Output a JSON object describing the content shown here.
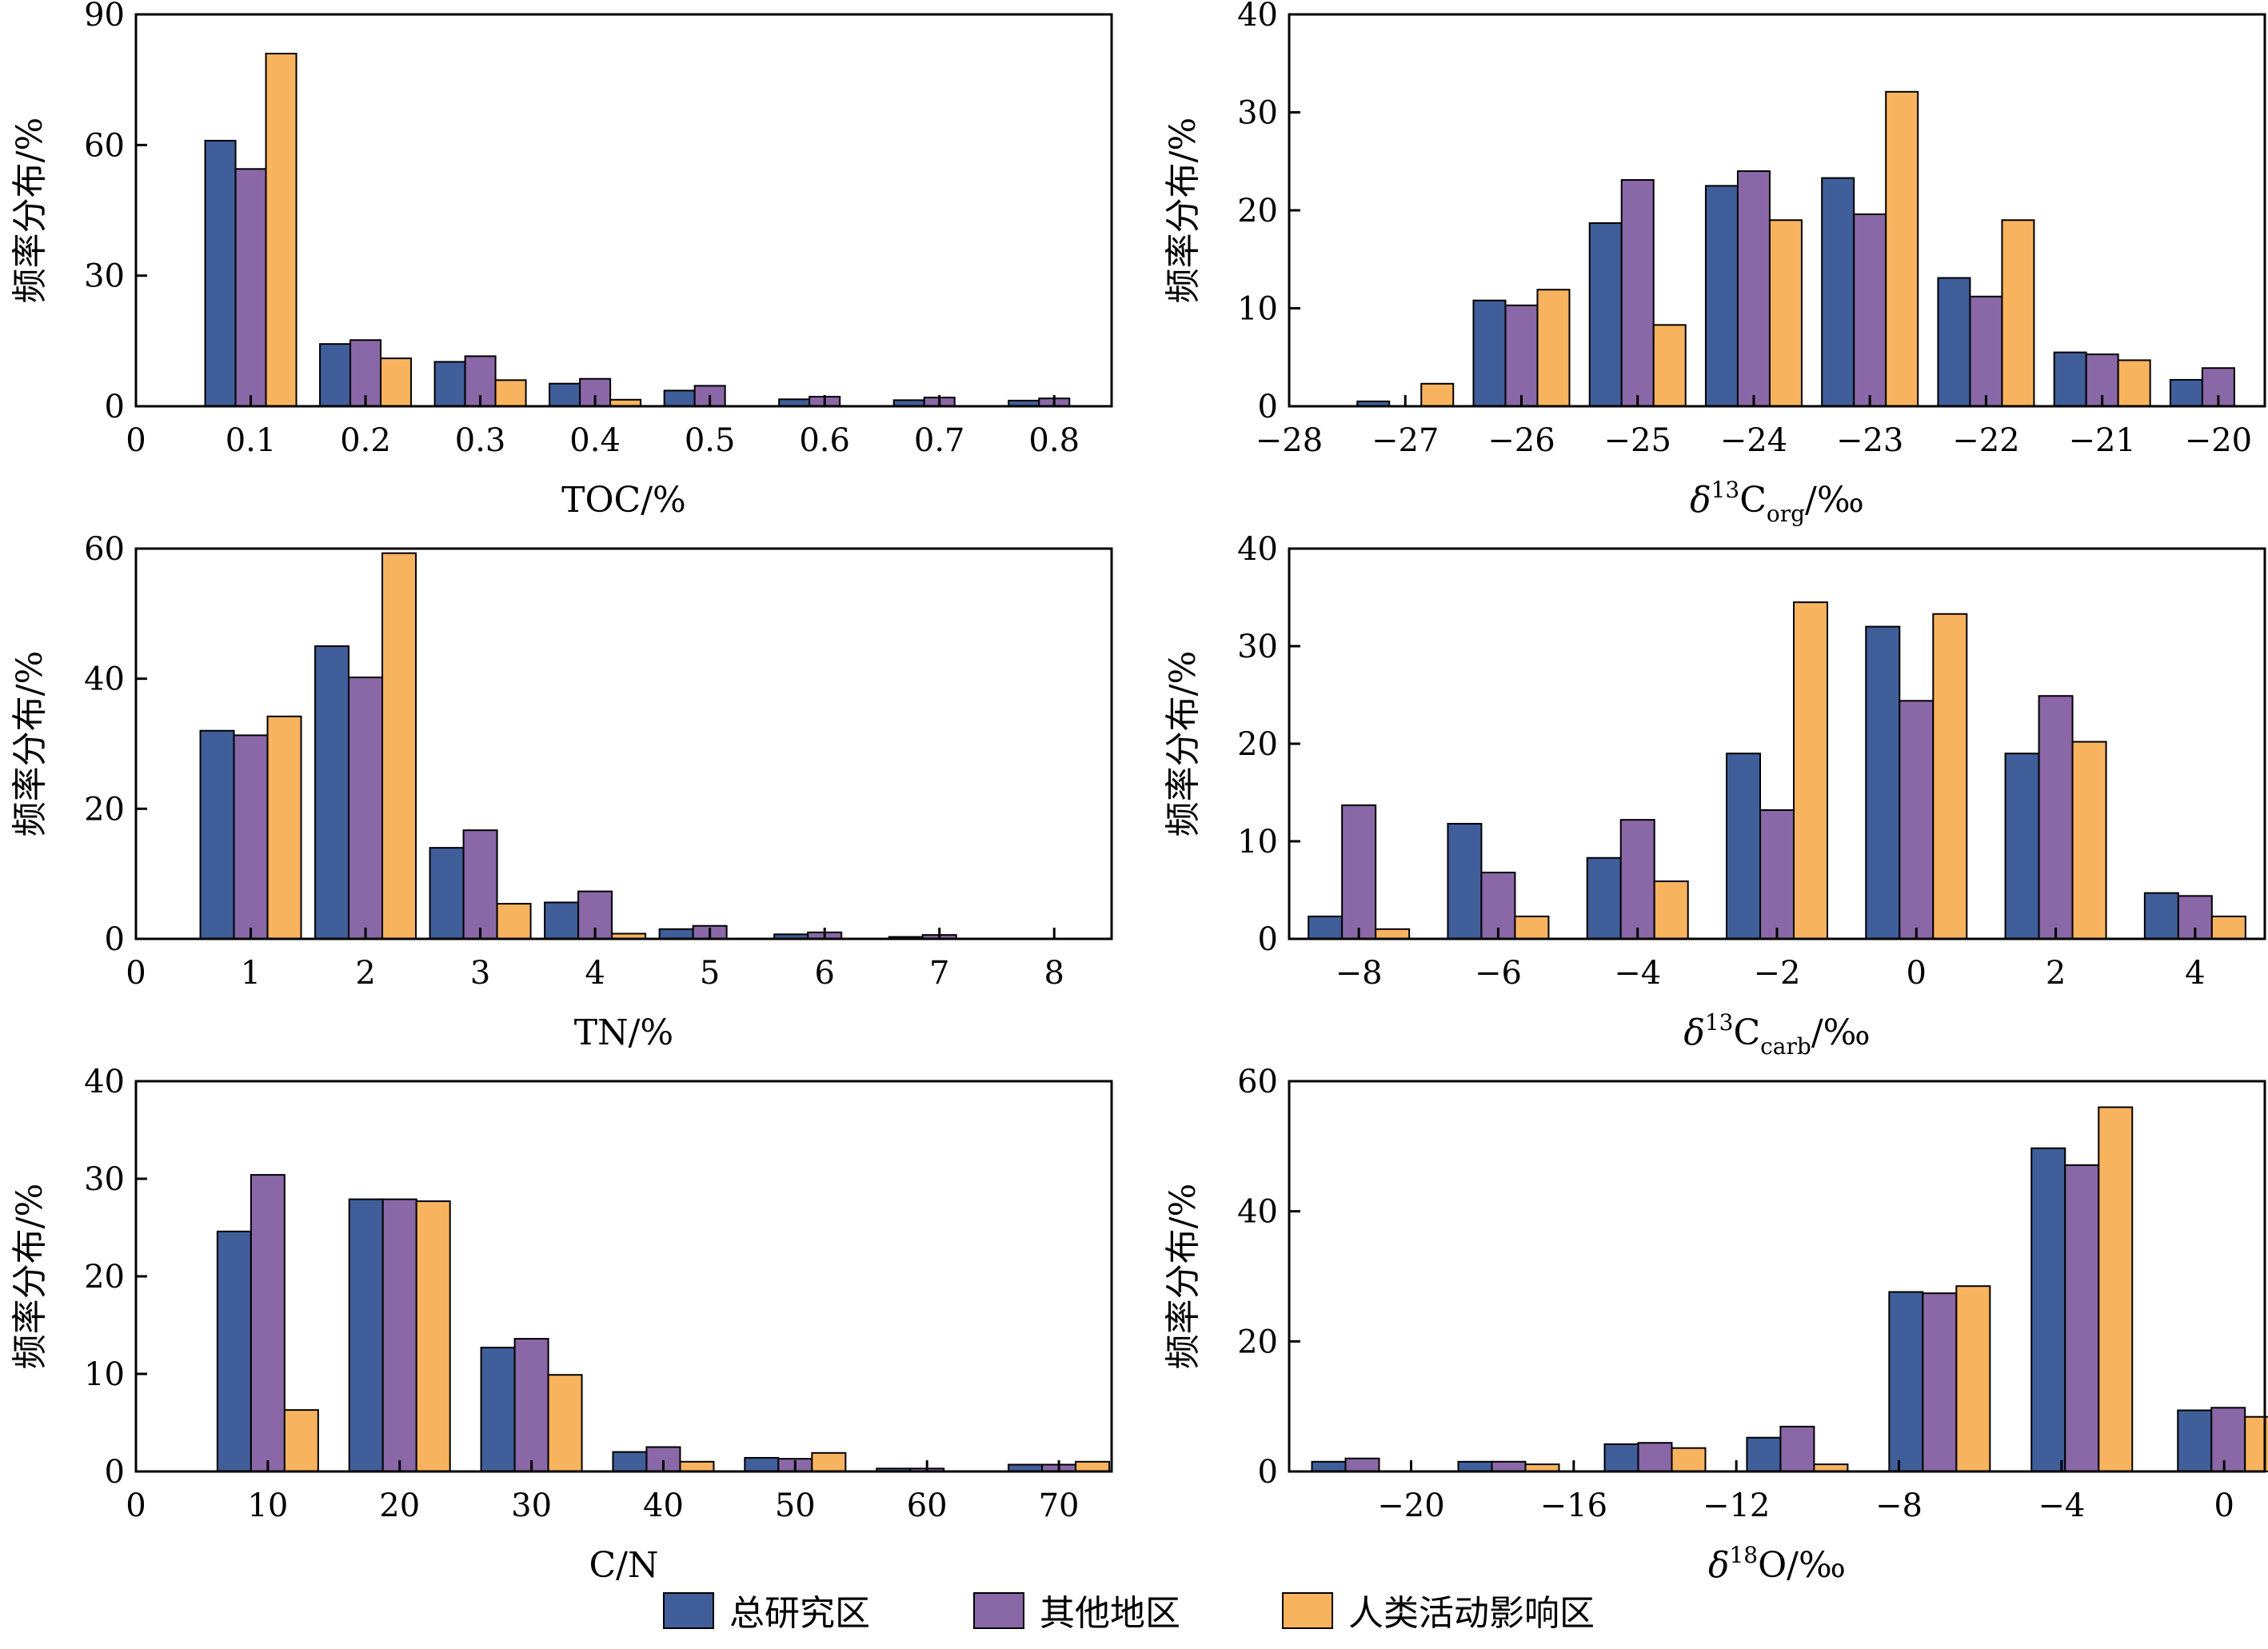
{
  "legend": {
    "items": [
      {
        "label": "总研究区",
        "color": "#3f5e9a"
      },
      {
        "label": "其他地区",
        "color": "#8a67a6"
      },
      {
        "label": "人类活动影响区",
        "color": "#f8b35f"
      }
    ]
  },
  "chart_data": [
    {
      "type": "bar",
      "xlabel": "TOC/%",
      "ylabel": "频率分布/%",
      "xlim": [
        0,
        0.85
      ],
      "ylim": [
        0,
        90
      ],
      "xticks": [
        "0",
        "0.1",
        "0.2",
        "0.3",
        "0.4",
        "0.5",
        "0.6",
        "0.7",
        "0.8"
      ],
      "yticks": [
        "0",
        "30",
        "60",
        "90"
      ],
      "categories": [
        0.1,
        0.2,
        0.3,
        0.4,
        0.5,
        0.6,
        0.7,
        0.8
      ],
      "series": [
        {
          "name": "总研究区",
          "values": [
            61,
            14.3,
            10.2,
            5.2,
            3.6,
            1.6,
            1.4,
            1.3
          ]
        },
        {
          "name": "其他地区",
          "values": [
            54.5,
            15.2,
            11.5,
            6.3,
            4.7,
            2.2,
            2.0,
            1.8
          ]
        },
        {
          "name": "人类活动影响区",
          "values": [
            81,
            11,
            6,
            1.5,
            0,
            0,
            0,
            0
          ]
        }
      ]
    },
    {
      "type": "bar",
      "xlabel": "δ13Corg/‰",
      "ylabel": "频率分布/%",
      "xlim": [
        -28,
        -19.6
      ],
      "ylim": [
        0,
        40
      ],
      "xticks": [
        "−28",
        "−27",
        "−26",
        "−25",
        "−24",
        "−23",
        "−22",
        "−21",
        "−20"
      ],
      "yticks": [
        "0",
        "10",
        "20",
        "30",
        "40"
      ],
      "categories": [
        -27,
        -26,
        -25,
        -24,
        -23,
        -22,
        -21,
        -20
      ],
      "series": [
        {
          "name": "总研究区",
          "values": [
            0.5,
            10.8,
            18.7,
            22.5,
            23.3,
            13.1,
            5.5,
            2.7
          ]
        },
        {
          "name": "其他地区",
          "values": [
            0,
            10.3,
            23.1,
            24.0,
            19.6,
            11.2,
            5.3,
            3.9
          ]
        },
        {
          "name": "人类活动影响区",
          "values": [
            2.3,
            11.9,
            8.3,
            19.0,
            32.1,
            19.0,
            4.7,
            0
          ]
        }
      ]
    },
    {
      "type": "bar",
      "xlabel": "TN/%",
      "ylabel": "频率分布/%",
      "xlim": [
        0,
        8.5
      ],
      "ylim": [
        0,
        60
      ],
      "xticks": [
        "0",
        "1",
        "2",
        "3",
        "4",
        "5",
        "6",
        "7",
        "8"
      ],
      "yticks": [
        "0",
        "20",
        "40",
        "60"
      ],
      "categories": [
        1,
        2,
        3,
        4,
        5,
        6,
        7
      ],
      "series": [
        {
          "name": "总研究区",
          "values": [
            32,
            45,
            14,
            5.6,
            1.5,
            0.7,
            0.3
          ]
        },
        {
          "name": "其他地区",
          "values": [
            31.3,
            40.2,
            16.7,
            7.3,
            2.0,
            1.0,
            0.6
          ]
        },
        {
          "name": "人类活动影响区",
          "values": [
            34.2,
            59.3,
            5.4,
            0.8,
            0,
            0,
            0
          ]
        }
      ]
    },
    {
      "type": "bar",
      "xlabel": "δ13Ccarb/‰",
      "ylabel": "频率分布/%",
      "xlim": [
        -9,
        5
      ],
      "ylim": [
        0,
        40
      ],
      "xticks": [
        "−8",
        "−6",
        "−4",
        "−2",
        "0",
        "2",
        "4"
      ],
      "yticks": [
        "0",
        "10",
        "20",
        "30",
        "40"
      ],
      "categories": [
        -8,
        -6,
        -4,
        -2,
        0,
        2,
        4
      ],
      "series": [
        {
          "name": "总研究区",
          "values": [
            2.3,
            11.8,
            8.3,
            19.0,
            32.0,
            19.0,
            4.7
          ]
        },
        {
          "name": "其他地区",
          "values": [
            13.7,
            6.8,
            12.2,
            13.2,
            24.4,
            24.9,
            4.4
          ]
        },
        {
          "name": "人类活动影响区",
          "values": [
            1.0,
            2.3,
            5.9,
            34.5,
            33.3,
            20.2,
            2.3
          ]
        }
      ]
    },
    {
      "type": "bar",
      "xlabel": "C/N",
      "ylabel": "频率分布/%",
      "xlim": [
        0,
        74
      ],
      "ylim": [
        0,
        40
      ],
      "xticks": [
        "0",
        "10",
        "20",
        "30",
        "40",
        "50",
        "60",
        "70"
      ],
      "yticks": [
        "0",
        "10",
        "20",
        "30",
        "40"
      ],
      "categories": [
        10,
        20,
        30,
        40,
        50,
        60,
        70
      ],
      "series": [
        {
          "name": "总研究区",
          "values": [
            24.6,
            27.9,
            12.7,
            2.0,
            1.4,
            0.3,
            0.7
          ]
        },
        {
          "name": "其他地区",
          "values": [
            30.4,
            27.9,
            13.6,
            2.5,
            1.3,
            0.3,
            0.7
          ]
        },
        {
          "name": "人类活动影响区",
          "values": [
            6.3,
            27.7,
            9.9,
            1.0,
            1.9,
            0,
            1.0
          ]
        }
      ]
    },
    {
      "type": "bar",
      "xlabel": "δ18O/‰",
      "ylabel": "频率分布/%",
      "xlim": [
        -23,
        1
      ],
      "ylim": [
        0,
        60
      ],
      "xticks": [
        "−20",
        "−16",
        "−12",
        "−8",
        "−4",
        "0"
      ],
      "xtick_values": [
        -20,
        -16,
        -12,
        -8,
        -4,
        0
      ],
      "yticks": [
        "0",
        "20",
        "40",
        "60"
      ],
      "categories": [
        -21.2,
        -17.6,
        -14,
        -10.5,
        -7,
        -3.5,
        0.1
      ],
      "series": [
        {
          "name": "总研究区",
          "values": [
            1.5,
            1.5,
            4.2,
            5.2,
            27.6,
            49.7,
            9.4
          ]
        },
        {
          "name": "其他地区",
          "values": [
            2.0,
            1.5,
            4.4,
            6.9,
            27.4,
            47.1,
            9.8
          ]
        },
        {
          "name": "人类活动影响区",
          "values": [
            0,
            1.1,
            3.6,
            1.1,
            28.5,
            56.0,
            8.4
          ]
        }
      ]
    }
  ]
}
